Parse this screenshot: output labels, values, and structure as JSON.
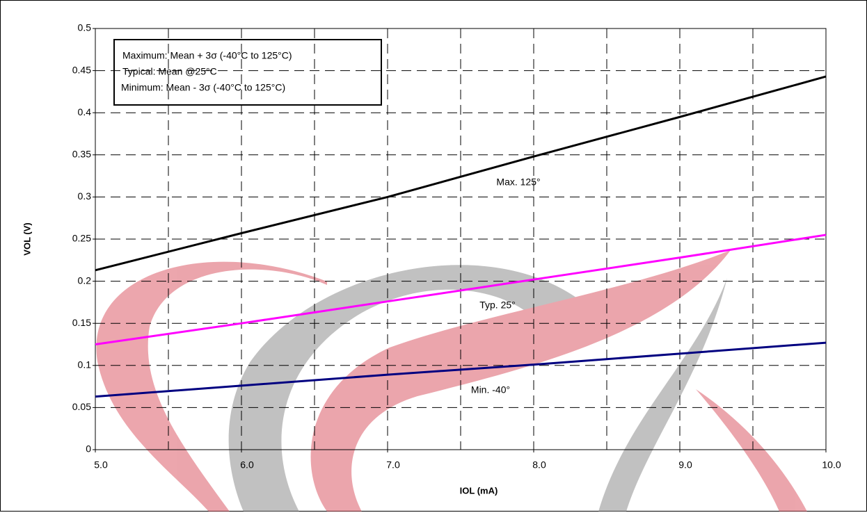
{
  "chart_data": {
    "type": "line",
    "x_label": "IOL (mA)",
    "y_label": "VOL (V)",
    "x": [
      5,
      6,
      7,
      8,
      9,
      10
    ],
    "series": [
      {
        "name": "Max. 125°",
        "color": "#000000",
        "values": [
          0.213,
          0.257,
          0.3,
          0.348,
          0.395,
          0.443
        ]
      },
      {
        "name": "Typ. 25°",
        "color": "#ff00ff",
        "values": [
          0.125,
          0.15,
          0.176,
          0.202,
          0.228,
          0.255
        ]
      },
      {
        "name": "Min. -40°",
        "color": "#000080",
        "values": [
          0.063,
          0.076,
          0.089,
          0.101,
          0.114,
          0.127
        ]
      }
    ],
    "legend_lines": [
      "Maximum: Mean + 3σ (-40°C to 125°C)",
      "Typical: Mean @25°C",
      "Minimum: Mean - 3σ (-40°C to 125°C)"
    ],
    "xlim": [
      5,
      10
    ],
    "xticks": [
      {
        "value": 5,
        "label": "5.0"
      },
      {
        "value": 6,
        "label": "6.0"
      },
      {
        "value": 7,
        "label": "7.0"
      },
      {
        "value": 8,
        "label": "8.0"
      },
      {
        "value": 9,
        "label": "9.0"
      },
      {
        "value": 10,
        "label": "10.0"
      }
    ],
    "xgrid_minor": [
      5.5,
      6.5,
      7.5,
      8.5,
      9.5
    ],
    "ylim": [
      0,
      0.5
    ],
    "yticks": [
      0,
      0.05,
      0.1,
      0.15,
      0.2,
      0.25,
      0.3,
      0.35,
      0.4,
      0.45,
      0.5
    ],
    "grid": true
  }
}
